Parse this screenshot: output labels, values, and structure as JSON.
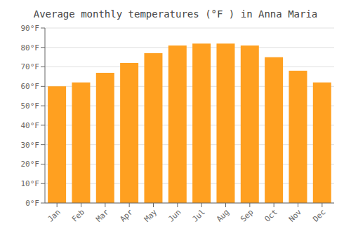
{
  "chart_data": {
    "type": "bar",
    "title": "Average monthly temperatures (°F ) in Anna Maria",
    "categories": [
      "Jan",
      "Feb",
      "Mar",
      "Apr",
      "May",
      "Jun",
      "Jul",
      "Aug",
      "Sep",
      "Oct",
      "Nov",
      "Dec"
    ],
    "values": [
      60,
      62,
      67,
      72,
      77,
      81,
      82,
      82,
      81,
      75,
      68,
      62
    ],
    "color": "#FFA020",
    "ylim": [
      0,
      90
    ],
    "yticks": [
      {
        "value": 0,
        "label": "0°F"
      },
      {
        "value": 10,
        "label": "10°F"
      },
      {
        "value": 20,
        "label": "20°F"
      },
      {
        "value": 30,
        "label": "30°F"
      },
      {
        "value": 40,
        "label": "40°F"
      },
      {
        "value": 50,
        "label": "50°F"
      },
      {
        "value": 60,
        "label": "60°F"
      },
      {
        "value": 70,
        "label": "70°F"
      },
      {
        "value": 80,
        "label": "80°F"
      },
      {
        "value": 90,
        "label": "90°F"
      }
    ],
    "grid": true
  }
}
